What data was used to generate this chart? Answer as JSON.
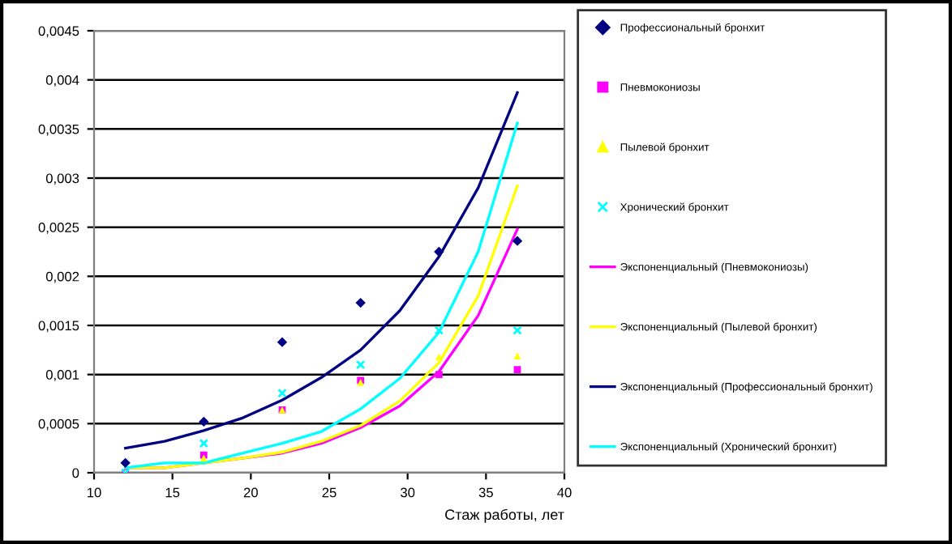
{
  "chart_data": {
    "type": "scatter",
    "xlabel": "Стаж работы, лет",
    "xlim": [
      10,
      40
    ],
    "xticks": [
      10,
      15,
      20,
      25,
      30,
      35,
      40
    ],
    "ylim": [
      0,
      0.0045
    ],
    "yticks": [
      {
        "value": 0,
        "label": "0"
      },
      {
        "value": 0.0005,
        "label": "0,0005"
      },
      {
        "value": 0.001,
        "label": "0,001"
      },
      {
        "value": 0.0015,
        "label": "0,0015"
      },
      {
        "value": 0.002,
        "label": "0,002"
      },
      {
        "value": 0.0025,
        "label": "0,0025"
      },
      {
        "value": 0.003,
        "label": "0,003"
      },
      {
        "value": 0.0035,
        "label": "0,0035"
      },
      {
        "value": 0.004,
        "label": "0,004"
      },
      {
        "value": 0.0045,
        "label": "0,0045"
      }
    ],
    "grid": "y",
    "legend": "right",
    "series": [
      {
        "name": "Профессиональный бронхит",
        "marker": "diamond",
        "color": "#000080",
        "x": [
          12,
          17,
          22,
          27,
          32,
          37
        ],
        "values": [
          0.0001,
          0.00052,
          0.00133,
          0.00173,
          0.00225,
          0.00236
        ]
      },
      {
        "name": "Пневмокониозы",
        "marker": "square",
        "color": "#ff00ff",
        "x": [
          12,
          17,
          22,
          27,
          32,
          37
        ],
        "values": [
          0,
          0.00018,
          0.00064,
          0.00094,
          0.001,
          0.00105
        ]
      },
      {
        "name": "Пылевой бронхит",
        "marker": "triangle",
        "color": "#ffff00",
        "x": [
          12,
          17,
          22,
          27,
          32,
          37
        ],
        "values": [
          0,
          0.00015,
          0.00064,
          0.00092,
          0.00118,
          0.00119
        ]
      },
      {
        "name": "Хронический бронхит",
        "marker": "cross",
        "color": "#00ffff",
        "x": [
          12,
          17,
          22,
          27,
          32,
          37
        ],
        "values": [
          0,
          0.0003,
          0.00081,
          0.0011,
          0.00145,
          0.00145
        ]
      },
      {
        "name": "Экспоненциальный (Пневмокониозы)",
        "type": "line",
        "color": "#ff00ff",
        "x": [
          12,
          14.5,
          17,
          19.5,
          22,
          24.5,
          27,
          29.5,
          32,
          34.5,
          37
        ],
        "values": [
          5e-05,
          5e-05,
          0.0001,
          0.00015,
          0.0002,
          0.0003,
          0.00046,
          0.00068,
          0.00103,
          0.0016,
          0.00248
        ]
      },
      {
        "name": "Экспоненциальный (Пылевой бронхит)",
        "type": "line",
        "color": "#ffff00",
        "x": [
          12,
          14.5,
          17,
          19.5,
          22,
          24.5,
          27,
          29.5,
          32,
          34.5,
          37
        ],
        "values": [
          5e-05,
          5e-05,
          0.0001,
          0.00015,
          0.00021,
          0.00032,
          0.00048,
          0.00073,
          0.00112,
          0.0018,
          0.00292
        ]
      },
      {
        "name": "Экспоненциальный (Профессиональный бронхит)",
        "type": "line",
        "color": "#000080",
        "x": [
          12,
          14.5,
          17,
          19.5,
          22,
          24.5,
          27,
          29.5,
          32,
          34.5,
          37
        ],
        "values": [
          0.00025,
          0.00032,
          0.00043,
          0.00056,
          0.00074,
          0.00097,
          0.00125,
          0.00165,
          0.0022,
          0.0029,
          0.00387
        ]
      },
      {
        "name": "Экспоненциальный (Хронический бронхит)",
        "type": "line",
        "color": "#00ffff",
        "x": [
          12,
          14.5,
          17,
          19.5,
          22,
          24.5,
          27,
          29.5,
          32,
          34.5,
          37
        ],
        "values": [
          5e-05,
          0.0001,
          0.0001,
          0.0002,
          0.0003,
          0.00042,
          0.00065,
          0.00096,
          0.00143,
          0.00225,
          0.00356
        ]
      }
    ]
  }
}
